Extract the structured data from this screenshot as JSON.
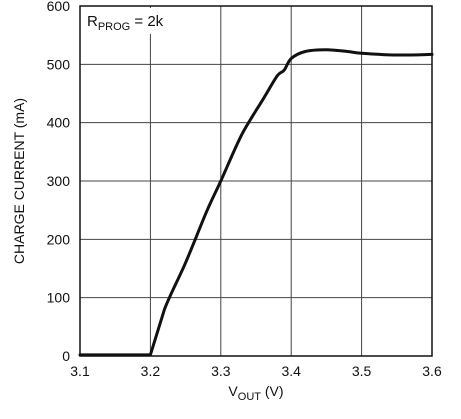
{
  "chart_data": {
    "type": "line",
    "annotation": {
      "main": "R",
      "sub": "PROG",
      "rest": " = 2k"
    },
    "xlabel": {
      "main": "V",
      "sub": "OUT",
      "rest": " (V)"
    },
    "ylabel": "CHARGE CURRENT (mA)",
    "xlim": [
      3.1,
      3.6
    ],
    "ylim": [
      0,
      600
    ],
    "xticks": [
      "3.1",
      "3.2",
      "3.3",
      "3.4",
      "3.5",
      "3.6"
    ],
    "yticks": [
      "0",
      "100",
      "200",
      "300",
      "400",
      "500",
      "600"
    ],
    "grid": true,
    "series": [
      {
        "x": [
          3.1,
          3.15,
          3.2,
          3.22,
          3.25,
          3.28,
          3.3,
          3.33,
          3.36,
          3.38,
          3.39,
          3.4,
          3.42,
          3.45,
          3.48,
          3.5,
          3.55,
          3.6
        ],
        "y": [
          2,
          2,
          2,
          80,
          160,
          248,
          300,
          380,
          440,
          480,
          490,
          510,
          522,
          525,
          522,
          519,
          516,
          517
        ]
      }
    ]
  }
}
